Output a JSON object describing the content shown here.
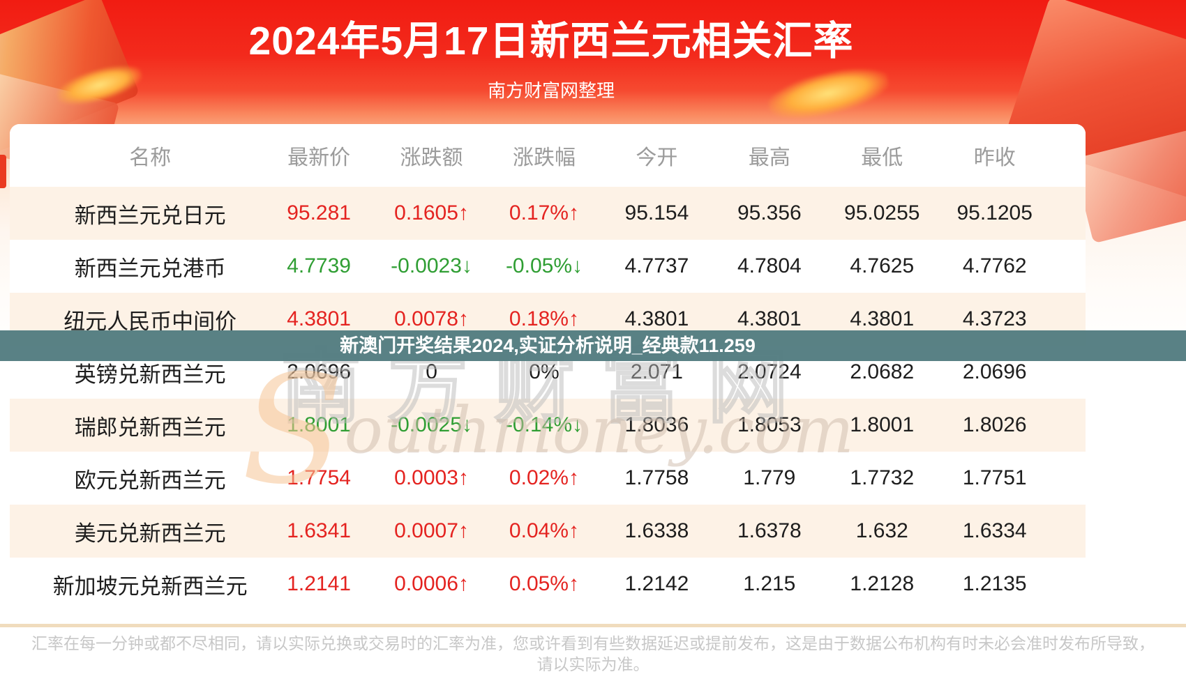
{
  "page": {
    "title": "2024年5月17日新西兰元相关汇率",
    "subtitle": "南方财富网整理"
  },
  "overlay_banner": {
    "text": "新澳门开奖结果2024,实证分析说明_经典款11.259"
  },
  "watermark": {
    "cn": "南方财富网",
    "en_s": "S",
    "en_rest": "outhmoney.com"
  },
  "chart_data": {
    "type": "table",
    "title": "2024年5月17日新西兰元相关汇率",
    "columns": [
      "名称",
      "最新价",
      "涨跌额",
      "涨跌幅",
      "今开",
      "最高",
      "最低",
      "昨收"
    ],
    "rows": [
      [
        "新西兰元兑日元",
        "95.281",
        "0.1605↑",
        "0.17%↑",
        "95.154",
        "95.356",
        "95.0255",
        "95.1205"
      ],
      [
        "新西兰元兑港币",
        "4.7739",
        "-0.0023↓",
        "-0.05%↓",
        "4.7737",
        "4.7804",
        "4.7625",
        "4.7762"
      ],
      [
        "纽元人民币中间价",
        "4.3801",
        "0.0078↑",
        "0.18%↑",
        "4.3801",
        "4.3801",
        "4.3801",
        "4.3723"
      ],
      [
        "英镑兑新西兰元",
        "2.0696",
        "0",
        "0%",
        "2.071",
        "2.0724",
        "2.0682",
        "2.0696"
      ],
      [
        "瑞郎兑新西兰元",
        "1.8001",
        "-0.0025↓",
        "-0.14%↓",
        "1.8036",
        "1.8053",
        "1.8001",
        "1.8026"
      ],
      [
        "欧元兑新西兰元",
        "1.7754",
        "0.0003↑",
        "0.02%↑",
        "1.7758",
        "1.779",
        "1.7732",
        "1.7751"
      ],
      [
        "美元兑新西兰元",
        "1.6341",
        "0.0007↑",
        "0.04%↑",
        "1.6338",
        "1.6378",
        "1.632",
        "1.6334"
      ],
      [
        "新加坡元兑新西兰元",
        "1.2141",
        "0.0006↑",
        "0.05%↑",
        "1.2142",
        "1.215",
        "1.2128",
        "1.2135"
      ]
    ],
    "trends": [
      "up",
      "down",
      "up",
      "flat",
      "down",
      "up",
      "up",
      "up"
    ],
    "legend_position": "none",
    "grid": false
  },
  "colors": {
    "up": "#e42320",
    "down": "#2f9e33",
    "neutral": "#1d1d1d",
    "banner_bg": "#507a7e",
    "header_red": "#f11c12",
    "row_alt": "#fdf2e6",
    "divider": "#f0dcbd"
  },
  "footer": {
    "line1": "汇率在每一分钟或都不尽相同，请以实际兑换或交易时的汇率为准，您或许看到有些数据延迟或提前发布，这是由于数据公布机构有时未必会准时发布所导致，",
    "line2": "请以实际为准。"
  }
}
